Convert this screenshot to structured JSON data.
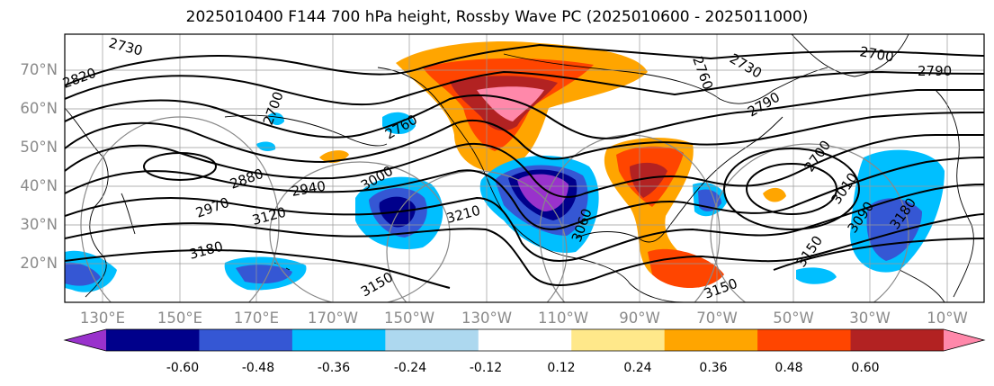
{
  "title": "2025010400 F144 700 hPa height, Rossby Wave PC (2025010600 - 2025011000)",
  "lat_labels": [
    "70°N",
    "60°N",
    "50°N",
    "40°N",
    "30°N",
    "20°N"
  ],
  "lon_labels": [
    "130°E",
    "150°E",
    "170°E",
    "170°W",
    "150°W",
    "130°W",
    "110°W",
    "90°W",
    "70°W",
    "50°W",
    "30°W",
    "10°W"
  ],
  "contour_labels": [
    "2730",
    "2820",
    "2700",
    "2760",
    "2700",
    "2730",
    "2790",
    "2790",
    "2760",
    "2880",
    "2970",
    "2940",
    "3000",
    "3120",
    "3180",
    "3210",
    "3150",
    "3150",
    "3060",
    "2700",
    "3010",
    "3090",
    "3180",
    "3150"
  ],
  "colorbar": {
    "colors": [
      "#9932cc",
      "#00008b",
      "#3557d4",
      "#00bfff",
      "#add8ef",
      "#ffffff",
      "#ffe88a",
      "#ffa500",
      "#ff4500",
      "#b22222",
      "#ff88aa"
    ],
    "ticks": [
      "-0.60",
      "-0.48",
      "-0.36",
      "-0.24",
      "-0.12",
      "0.12",
      "0.24",
      "0.36",
      "0.48",
      "0.60"
    ]
  }
}
